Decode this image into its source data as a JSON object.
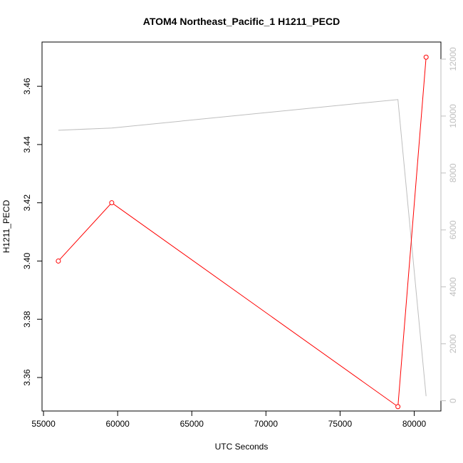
{
  "chart_data": {
    "type": "line",
    "title": "ATOM4 Northeast_Pacific_1 H1211_PECD",
    "xlabel": "UTC Seconds",
    "ylabel": "H1211_PECD",
    "xlim": [
      54900,
      81800
    ],
    "ylim": [
      3.3485,
      3.4752
    ],
    "y2lim": [
      -360,
      12600
    ],
    "x_ticks": [
      55000,
      60000,
      65000,
      70000,
      75000,
      80000
    ],
    "y_ticks": [
      3.36,
      3.38,
      3.4,
      3.42,
      3.44,
      3.46
    ],
    "y_tick_labels": [
      "3.36",
      "3.38",
      "3.40",
      "3.42",
      "3.44",
      "3.46"
    ],
    "y2_ticks": [
      0,
      2000,
      4000,
      6000,
      8000,
      10000,
      12000
    ],
    "series": [
      {
        "axis": "left",
        "color": "#ff0000",
        "markers": "open-circle",
        "x": [
          56000,
          59600,
          78900,
          80800
        ],
        "y": [
          3.4,
          3.42,
          3.35,
          3.47
        ]
      },
      {
        "axis": "right",
        "color": "#bebebe",
        "markers": "none",
        "x": [
          56000,
          59600,
          78900,
          80800
        ],
        "y": [
          9500,
          9580,
          10580,
          160
        ]
      }
    ]
  }
}
